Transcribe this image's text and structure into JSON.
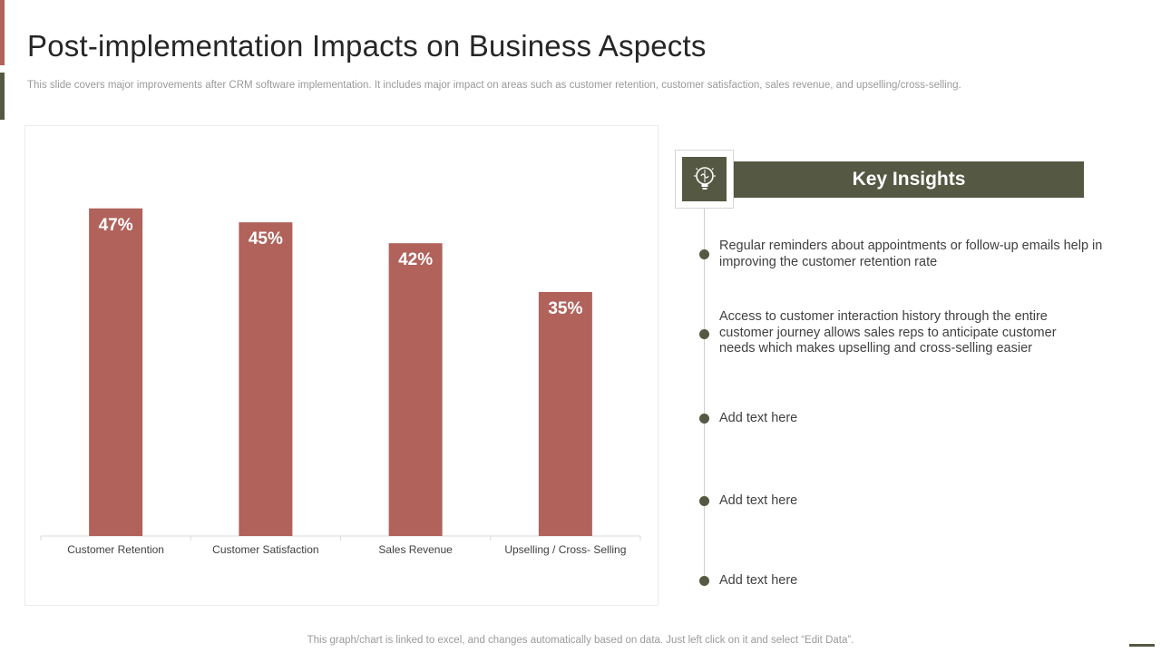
{
  "header": {
    "title": "Post-implementation Impacts on Business Aspects",
    "subtitle": "This slide covers major improvements after CRM software implementation. It includes major impact on areas such as customer retention, customer satisfaction, sales revenue, and upselling/cross-selling."
  },
  "colors": {
    "bar": "#b0625b",
    "accent_dark": "#555843",
    "bar_label": "#ffffff"
  },
  "chart_data": {
    "type": "bar",
    "categories": [
      "Customer Retention",
      "Customer Satisfaction",
      "Sales Revenue",
      "Upselling / Cross- Selling"
    ],
    "values": [
      47,
      45,
      42,
      35
    ],
    "value_labels": [
      "47%",
      "45%",
      "42%",
      "35%"
    ],
    "unit": "%",
    "ylim": [
      0,
      50
    ],
    "grid": false,
    "legend": "none"
  },
  "insights": {
    "title": "Key Insights",
    "icon": "lightbulb-brain-icon",
    "items": [
      "Regular reminders about appointments or follow-up emails help in improving the customer retention rate",
      "Access to customer interaction history through the entire customer journey allows sales reps to anticipate customer needs which makes upselling and cross-selling easier",
      "Add text here",
      "Add text here",
      "Add text here"
    ]
  },
  "footer": {
    "note": "This graph/chart is linked to excel,  and changes automatically based on data. Just left click on it and select “Edit Data”."
  }
}
